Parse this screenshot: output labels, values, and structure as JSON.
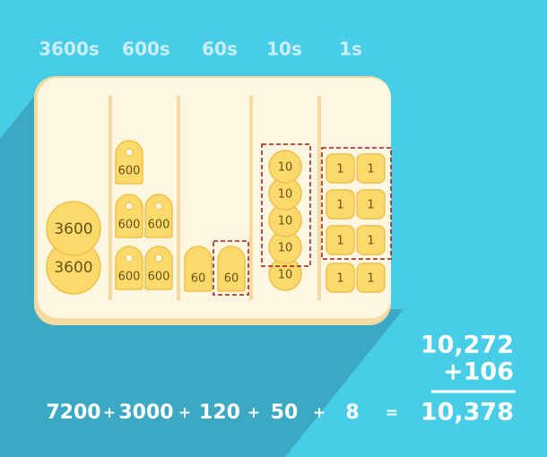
{
  "columns": [
    {
      "header": "3600s",
      "coins": [
        "3600",
        "3600"
      ]
    },
    {
      "header": "600s",
      "coins": [
        "600",
        "600",
        "600",
        "600",
        "600"
      ]
    },
    {
      "header": "60s",
      "coins": [
        "60",
        "60"
      ]
    },
    {
      "header": "10s",
      "coins": [
        "10",
        "10",
        "10",
        "10",
        "10"
      ]
    },
    {
      "header": "1s",
      "coins": [
        "1",
        "1",
        "1",
        "1",
        "1",
        "1",
        "1",
        "1"
      ]
    }
  ],
  "sum": {
    "addend1": "10,272",
    "addend2": "+106",
    "result": "10,378"
  },
  "equation": {
    "terms": [
      "7200",
      "3000",
      "120",
      "50",
      "8"
    ],
    "operators": [
      "+",
      "+",
      "+",
      "+",
      "="
    ]
  }
}
